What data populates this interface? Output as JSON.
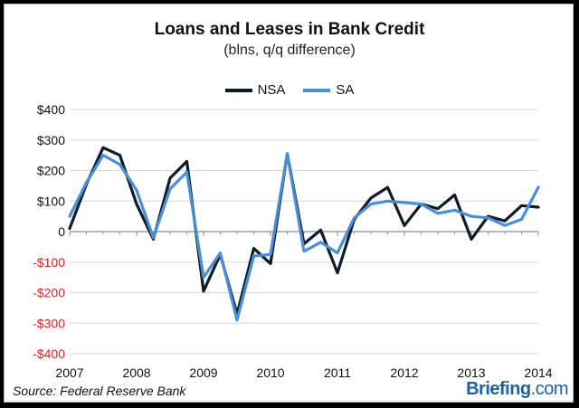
{
  "brand": {
    "name": "Briefing",
    "tld": ".com"
  },
  "source": "Source: Federal Reserve Bank",
  "colors": {
    "nsa": "#0d1b2a",
    "sa": "#4a8fd6",
    "negative_tick": "#e02020",
    "positive_tick": "#111111",
    "grid": "#d9d9d9"
  },
  "chart_data": {
    "type": "line",
    "title": "Loans and Leases in Bank Credit",
    "subtitle": "(blns, q/q difference)",
    "xlabel": "",
    "ylabel": "",
    "xlim": [
      2007,
      2014
    ],
    "ylim": [
      -400,
      400
    ],
    "y_ticks": [
      400,
      300,
      200,
      100,
      0,
      -100,
      -200,
      -300,
      -400
    ],
    "y_tick_labels": [
      "$400",
      "$300",
      "$200",
      "$100",
      "0",
      "-$100",
      "-$200",
      "-$300",
      "-$400"
    ],
    "x_ticks": [
      2007,
      2008,
      2009,
      2010,
      2011,
      2012,
      2013,
      2014
    ],
    "x_tick_labels": [
      "2007",
      "2008",
      "2009",
      "2010",
      "2011",
      "2012",
      "2013",
      "2014"
    ],
    "grid": true,
    "legend_position": "top-center",
    "x": [
      2007,
      2007.25,
      2007.5,
      2007.75,
      2008,
      2008.25,
      2008.5,
      2008.75,
      2009,
      2009.25,
      2009.5,
      2009.75,
      2010,
      2010.25,
      2010.5,
      2010.75,
      2011,
      2011.25,
      2011.5,
      2011.75,
      2012,
      2012.25,
      2012.5,
      2012.75,
      2013,
      2013.25,
      2013.5,
      2013.75,
      2014
    ],
    "series": [
      {
        "name": "NSA",
        "values": [
          10,
          155,
          275,
          250,
          90,
          -25,
          175,
          230,
          -195,
          -75,
          -270,
          -55,
          -105,
          255,
          -40,
          5,
          -135,
          40,
          110,
          145,
          20,
          90,
          75,
          120,
          -25,
          50,
          35,
          85,
          80
        ]
      },
      {
        "name": "SA",
        "values": [
          50,
          160,
          250,
          220,
          135,
          -20,
          140,
          195,
          -150,
          -70,
          -290,
          -80,
          -75,
          255,
          -65,
          -35,
          -70,
          45,
          90,
          100,
          95,
          90,
          60,
          70,
          50,
          45,
          20,
          40,
          145
        ]
      }
    ]
  }
}
